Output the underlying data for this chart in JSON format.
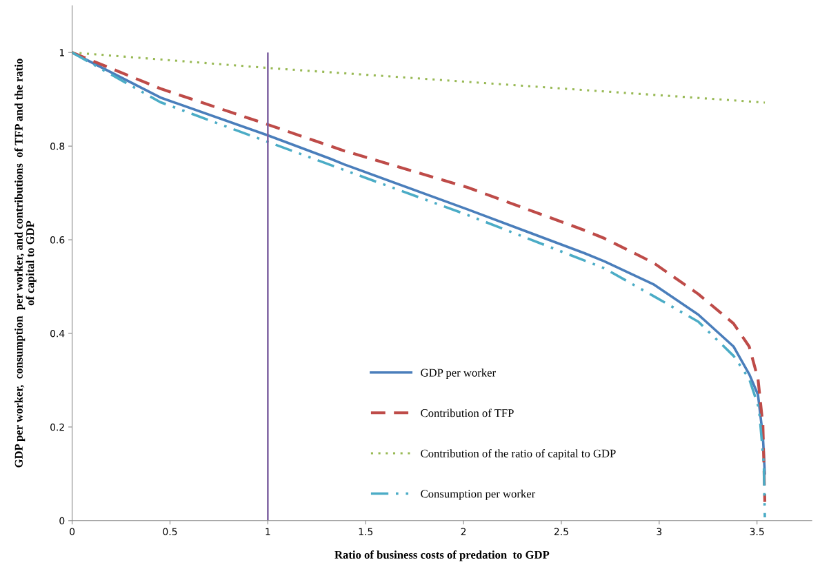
{
  "chart_data": {
    "type": "line",
    "xlabel": "Ratio of business costs of predation  to GDP",
    "ylabel": "GDP per worker,  consumption  per worker, and contributions  of TFP and the ratio\nof capital to GDP",
    "xlim": [
      0,
      3.78
    ],
    "ylim": [
      0,
      1.1
    ],
    "xticks": [
      0,
      0.5,
      1,
      1.5,
      2,
      2.5,
      3,
      3.5
    ],
    "yticks": [
      0,
      0.2,
      0.4,
      0.6,
      0.8,
      1
    ],
    "grid": false,
    "legend": "bottom",
    "marker": "none",
    "ref_lines": [
      {
        "axis": "x",
        "value": 1,
        "color": "#7d60a0",
        "line_style": "solid"
      }
    ],
    "series": [
      {
        "name": "GDP per worker",
        "color": "#4a7ebb",
        "line_style": "solid",
        "x": [
          0,
          0.45,
          1,
          1.32,
          1.39,
          2.02,
          2.62,
          2.72,
          2.97,
          3.2,
          3.38,
          3.46,
          3.505,
          3.53,
          3.54
        ],
        "values": [
          1,
          0.904,
          0.823,
          0.773,
          0.761,
          0.665,
          0.571,
          0.554,
          0.505,
          0.44,
          0.372,
          0.313,
          0.269,
          0.18,
          0.1
        ]
      },
      {
        "name": "Contribution of TFP",
        "color": "#be4b48",
        "line_style": "dashed",
        "x": [
          0,
          0.45,
          1,
          1.32,
          1.39,
          2.02,
          2.62,
          2.72,
          2.97,
          3.2,
          3.38,
          3.46,
          3.505,
          3.53,
          3.54
        ],
        "values": [
          1,
          0.923,
          0.846,
          0.8,
          0.79,
          0.712,
          0.62,
          0.603,
          0.551,
          0.484,
          0.421,
          0.372,
          0.303,
          0.204,
          0.04
        ]
      },
      {
        "name": "Contribution of the ratio of capital to GDP",
        "color": "#98b954",
        "line_style": "dotted",
        "x": [
          0,
          1,
          3.54
        ],
        "values": [
          1,
          0.967,
          0.893
        ]
      },
      {
        "name": "Consumption per worker",
        "color": "#4bacc6",
        "line_style": "dashdot",
        "x": [
          0,
          0.45,
          1,
          1.39,
          2.02,
          2.72,
          2.97,
          3.2,
          3.38,
          3.46,
          3.51,
          3.535,
          3.54
        ],
        "values": [
          1,
          0.894,
          0.809,
          0.749,
          0.653,
          0.539,
          0.48,
          0.425,
          0.352,
          0.303,
          0.24,
          0.12,
          0.007
        ]
      }
    ]
  }
}
